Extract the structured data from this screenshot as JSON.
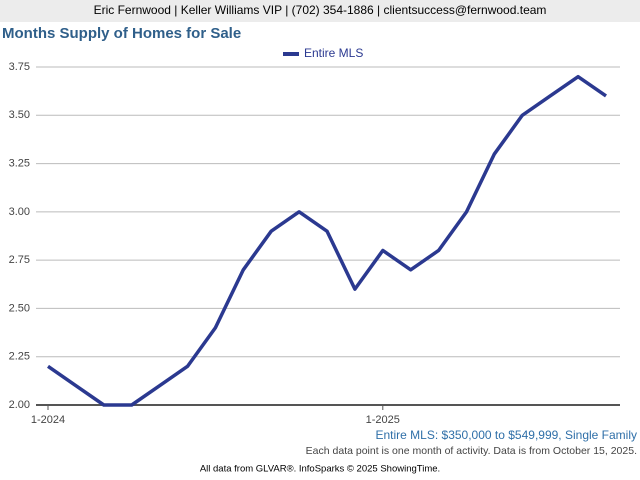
{
  "header": {
    "text": "Eric Fernwood | Keller Williams VIP | (702) 354-1886 | clientsuccess@fernwood.team"
  },
  "chart_data": {
    "type": "line",
    "title": "Months Supply of Homes for Sale",
    "categories": [
      "1-2024",
      null,
      null,
      null,
      null,
      null,
      null,
      null,
      null,
      null,
      null,
      null,
      "1-2025",
      null,
      null,
      null,
      null,
      null,
      null,
      null,
      null
    ],
    "series": [
      {
        "name": "Entire MLS",
        "color": "#2b3990",
        "values": [
          2.2,
          2.1,
          2.0,
          2.0,
          2.1,
          2.2,
          2.4,
          2.7,
          2.9,
          3.0,
          2.9,
          2.6,
          2.8,
          2.7,
          2.8,
          3.0,
          3.3,
          3.5,
          3.6,
          3.7,
          3.6
        ]
      }
    ],
    "ylim": [
      2.0,
      3.75
    ],
    "yticks": [
      {
        "value": 2.0,
        "label": "2.00"
      },
      {
        "value": 2.25,
        "label": "2.25"
      },
      {
        "value": 2.5,
        "label": "2.50"
      },
      {
        "value": 2.75,
        "label": "2.75"
      },
      {
        "value": 3.0,
        "label": "3.00"
      },
      {
        "value": 3.25,
        "label": "3.25"
      },
      {
        "value": 3.5,
        "label": "3.50"
      },
      {
        "value": 3.75,
        "label": "3.75"
      }
    ],
    "grid": true,
    "legend": "top",
    "subtitle": "Entire MLS: $350,000 to $549,999, Single Family",
    "note": "Each data point is one month of activity. Data is from October 15, 2025.",
    "footer": "All data from GLVAR®. InfoSparks © 2025 ShowingTime."
  }
}
